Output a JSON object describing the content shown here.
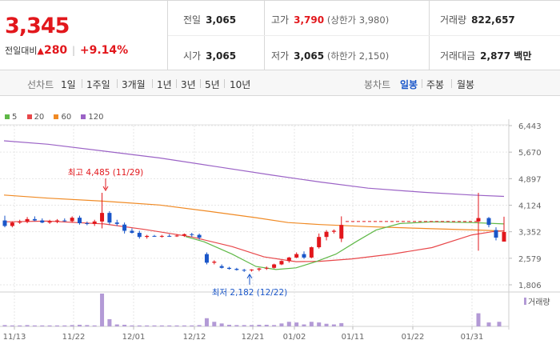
{
  "quote": {
    "price": "3,345",
    "change_label": "전일대비",
    "change_icon": "up-triangle-icon",
    "change_value": "280",
    "change_pct": "+9.14%",
    "stats": {
      "prev_close": {
        "label": "전일",
        "value": "3,065"
      },
      "open": {
        "label": "시가",
        "value": "3,065"
      },
      "high": {
        "label": "고가",
        "value": "3,790",
        "sub": "(상한가 3,980)"
      },
      "low": {
        "label": "저가",
        "value": "3,065",
        "sub": "(하한가 2,150)"
      },
      "volume": {
        "label": "거래량",
        "value": "822,657"
      },
      "amount": {
        "label": "거래대금",
        "value": "2,877 백만"
      }
    }
  },
  "periods": {
    "line_label": "선차트",
    "line_items": [
      "1일",
      "1주일",
      "3개월",
      "1년",
      "3년",
      "5년",
      "10년"
    ],
    "candle_label": "봉차트",
    "candle_items": [
      "일봉",
      "주봉",
      "월봉"
    ],
    "active_candle": "일봉"
  },
  "colors": {
    "up": "#e2171c",
    "down": "#1a56c9",
    "ma5": "#5fb847",
    "ma20": "#e8474a",
    "ma60": "#f08a24",
    "ma120": "#9b63c6",
    "volume": "#b39ad6",
    "grid": "#e6e6e6"
  },
  "chart_data": {
    "type": "candlestick",
    "legend": [
      {
        "name": "5",
        "color": "#5fb847"
      },
      {
        "name": "20",
        "color": "#e8474a"
      },
      {
        "name": "60",
        "color": "#f08a24"
      },
      {
        "name": "120",
        "color": "#9b63c6"
      }
    ],
    "y_ticks": [
      "6,443",
      "5,670",
      "4,897",
      "4,124",
      "3,352",
      "2,579",
      "1,806"
    ],
    "y_range": [
      1806,
      6443
    ],
    "x_ticks": [
      "11/13",
      "11/22",
      "12/01",
      "12/12",
      "12/21",
      "01/02",
      "01/11",
      "01/22",
      "01/31"
    ],
    "volume_label": "거래량",
    "annotations": {
      "high": "최고 4,485 (11/29)",
      "low": "최저 2,182 (12/22)"
    },
    "candles": [
      [
        3680,
        3820,
        3480,
        3520
      ],
      [
        3520,
        3650,
        3480,
        3620
      ],
      [
        3620,
        3700,
        3580,
        3640
      ],
      [
        3640,
        3780,
        3600,
        3720
      ],
      [
        3720,
        3800,
        3660,
        3680
      ],
      [
        3680,
        3740,
        3600,
        3620
      ],
      [
        3620,
        3700,
        3580,
        3650
      ],
      [
        3650,
        3720,
        3600,
        3680
      ],
      [
        3680,
        3740,
        3640,
        3660
      ],
      [
        3660,
        3800,
        3620,
        3760
      ],
      [
        3760,
        3820,
        3560,
        3600
      ],
      [
        3600,
        3650,
        3540,
        3580
      ],
      [
        3580,
        3700,
        3520,
        3650
      ],
      [
        3650,
        4485,
        3450,
        3900
      ],
      [
        3900,
        3950,
        3560,
        3620
      ],
      [
        3620,
        3700,
        3520,
        3580
      ],
      [
        3560,
        3620,
        3300,
        3380
      ],
      [
        3380,
        3450,
        3300,
        3320
      ],
      [
        3320,
        3380,
        3150,
        3200
      ],
      [
        3200,
        3260,
        3150,
        3230
      ],
      [
        3230,
        3260,
        3200,
        3210
      ],
      [
        3210,
        3260,
        3180,
        3230
      ],
      [
        3230,
        3280,
        3200,
        3220
      ],
      [
        3220,
        3280,
        3200,
        3240
      ],
      [
        3240,
        3300,
        3200,
        3280
      ],
      [
        3280,
        3320,
        3200,
        3260
      ],
      [
        3260,
        3300,
        3120,
        3180
      ],
      [
        2700,
        2750,
        2400,
        2450
      ],
      [
        2450,
        2520,
        2400,
        2480
      ],
      [
        2350,
        2400,
        2280,
        2300
      ],
      [
        2300,
        2330,
        2250,
        2270
      ],
      [
        2270,
        2300,
        2220,
        2240
      ],
      [
        2240,
        2270,
        2182,
        2230
      ],
      [
        2230,
        2260,
        2190,
        2250
      ],
      [
        2250,
        2300,
        2200,
        2280
      ],
      [
        2280,
        2340,
        2240,
        2300
      ],
      [
        2300,
        2420,
        2280,
        2400
      ],
      [
        2400,
        2520,
        2380,
        2500
      ],
      [
        2500,
        2620,
        2450,
        2600
      ],
      [
        2600,
        2750,
        2580,
        2700
      ],
      [
        2700,
        2780,
        2560,
        2600
      ],
      [
        2600,
        2920,
        2580,
        2900
      ],
      [
        2900,
        3300,
        2860,
        3200
      ],
      [
        3200,
        3400,
        3100,
        3350
      ],
      [
        3350,
        3420,
        3300,
        3380
      ],
      [
        3150,
        3800,
        3050,
        3550
      ]
    ],
    "last_candles": [
      [
        3650,
        4485,
        2800,
        3750
      ],
      [
        3750,
        3780,
        3480,
        3550
      ],
      [
        3400,
        3480,
        3100,
        3180
      ],
      [
        3065,
        3790,
        3065,
        3345
      ]
    ],
    "volumes": [
      4,
      3,
      3,
      4,
      3,
      3,
      3,
      3,
      3,
      4,
      5,
      4,
      3,
      100,
      22,
      6,
      5,
      3,
      3,
      3,
      3,
      3,
      3,
      3,
      3,
      3,
      4,
      25,
      14,
      9,
      5,
      4,
      4,
      4,
      5,
      5,
      4,
      9,
      14,
      12,
      6,
      14,
      12,
      8,
      6,
      10,
      0,
      0,
      0,
      0,
      0,
      0,
      0,
      0,
      0,
      0,
      0,
      0,
      0,
      0,
      0,
      0,
      0,
      0,
      0,
      0,
      0,
      0,
      0,
      0,
      0,
      0,
      0,
      0,
      0,
      0,
      0,
      0,
      0,
      0,
      0,
      0,
      0,
      0,
      0,
      0,
      0,
      0,
      0,
      0,
      0,
      0,
      0,
      0,
      0,
      0,
      0,
      0,
      0,
      0,
      0,
      0,
      0,
      40,
      12,
      14
    ]
  }
}
